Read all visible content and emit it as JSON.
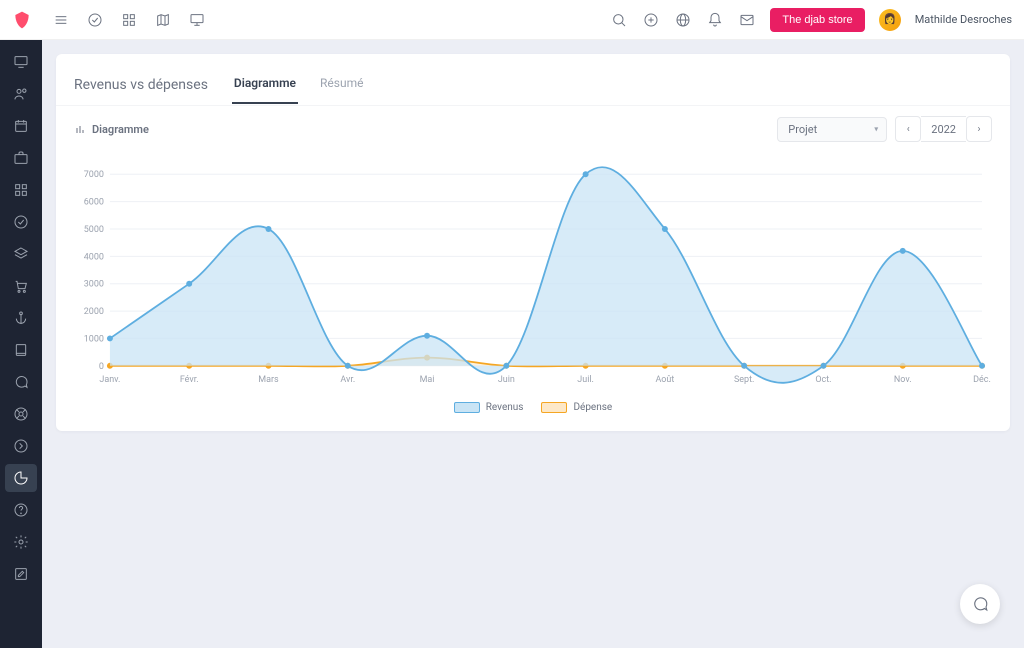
{
  "header": {
    "store_button": "The djab store",
    "username": "Mathilde Desroches"
  },
  "page": {
    "title": "Revenus vs dépenses",
    "tabs": [
      {
        "label": "Diagramme",
        "active": true
      },
      {
        "label": "Résumé",
        "active": false
      }
    ],
    "toolbar_label": "Diagramme",
    "filter_select": "Projet",
    "year": "2022"
  },
  "chart": {
    "type": "area",
    "ylim": [
      0,
      7000
    ],
    "ytick_step": 1000,
    "categories": [
      "Janv.",
      "Févr.",
      "Mars",
      "Avr.",
      "Mai",
      "Juin",
      "Juil.",
      "Août",
      "Sept.",
      "Oct.",
      "Nov.",
      "Déc."
    ],
    "series": [
      {
        "name": "Revenus",
        "color": "#5eaee0",
        "fill": "#c9e4f5",
        "fill_opacity": 0.75,
        "values": [
          1000,
          3000,
          5000,
          0,
          1100,
          0,
          7000,
          5000,
          0,
          0,
          4200,
          0
        ]
      },
      {
        "name": "Dépense",
        "color": "#f5a623",
        "fill": "#fde8c8",
        "fill_opacity": 0.6,
        "values": [
          0,
          0,
          0,
          0,
          300,
          0,
          0,
          0,
          0,
          0,
          0,
          0
        ]
      }
    ],
    "background_color": "#ffffff",
    "grid_color": "#eef0f5",
    "axis_label_color": "#9ca3af",
    "marker_radius": 3
  },
  "legend": {
    "revenus": "Revenus",
    "depense": "Dépense"
  }
}
